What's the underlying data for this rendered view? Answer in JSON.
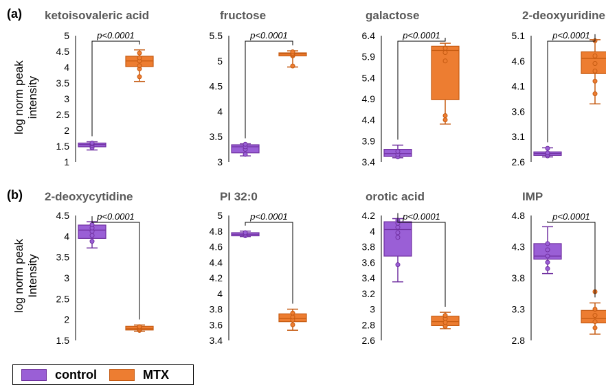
{
  "panel_labels": [
    "(a)",
    "(b)"
  ],
  "y_axis_labels": {
    "a": [
      "log norm peak",
      "intensity"
    ],
    "b": [
      "log norm peak",
      "Intensity"
    ]
  },
  "colors": {
    "control": "#9a5fd6",
    "control_edge": "#7030a0",
    "mtx": "#ed7d31",
    "mtx_edge": "#c55a11"
  },
  "legend": [
    {
      "name": "control",
      "color": "#9a5fd6"
    },
    {
      "name": "MTX",
      "color": "#ed7d31"
    }
  ],
  "chart_data": [
    {
      "type": "box",
      "title": "ketoisovaleric acid",
      "ylim": [
        1,
        5
      ],
      "yticks": [
        "5",
        "4.5",
        "4",
        "3.5",
        "3",
        "2.5",
        "2",
        "1.5",
        "1"
      ],
      "p_value": "p<0.0001",
      "series": [
        {
          "name": "control",
          "min": 1.38,
          "q1": 1.48,
          "median": 1.55,
          "q3": 1.6,
          "max": 1.64,
          "points": [
            1.45,
            1.52,
            1.57,
            1.6
          ]
        },
        {
          "name": "MTX",
          "min": 3.55,
          "q1": 4.02,
          "median": 4.2,
          "q3": 4.35,
          "max": 4.55,
          "points": [
            3.7,
            3.95,
            4.05,
            4.2,
            4.3,
            4.45
          ]
        }
      ]
    },
    {
      "type": "box",
      "title": "fructose",
      "ylim": [
        3,
        5.5
      ],
      "yticks": [
        "5.5",
        "5",
        "4.5",
        "4",
        "3.5",
        "3"
      ],
      "p_value": "p<0.0001",
      "series": [
        {
          "name": "control",
          "min": 3.12,
          "q1": 3.18,
          "median": 3.3,
          "q3": 3.34,
          "max": 3.36,
          "points": [
            3.15,
            3.25,
            3.3,
            3.35
          ]
        },
        {
          "name": "MTX",
          "min": 4.88,
          "q1": 5.1,
          "median": 5.14,
          "q3": 5.16,
          "max": 5.2,
          "points": [
            4.9,
            5.1,
            5.12,
            5.15,
            5.18
          ]
        }
      ]
    },
    {
      "type": "box",
      "title": "galactose",
      "ylim": [
        3.4,
        6.4
      ],
      "yticks": [
        "6.4",
        "5.9",
        "5.4",
        "4.9",
        "4.4",
        "3.9",
        "3.4"
      ],
      "p_value": "p<0.0001",
      "series": [
        {
          "name": "control",
          "min": 3.5,
          "q1": 3.53,
          "median": 3.6,
          "q3": 3.7,
          "max": 3.8,
          "points": [
            3.52,
            3.58,
            3.65
          ]
        },
        {
          "name": "MTX",
          "min": 4.3,
          "q1": 4.88,
          "median": 6.05,
          "q3": 6.15,
          "max": 6.22,
          "points": [
            4.4,
            4.5,
            5.8,
            6.0,
            6.1
          ]
        }
      ]
    },
    {
      "type": "box",
      "title": "2-deoxyuridine",
      "ylim": [
        2.6,
        5.1
      ],
      "yticks": [
        "5.1",
        "4.6",
        "4.1",
        "3.6",
        "3.1",
        "2.6"
      ],
      "p_value": "p<0.0001",
      "series": [
        {
          "name": "control",
          "min": 2.7,
          "q1": 2.73,
          "median": 2.77,
          "q3": 2.8,
          "max": 2.88,
          "points": [
            2.72,
            2.75,
            2.78,
            2.87
          ]
        },
        {
          "name": "MTX",
          "min": 3.75,
          "q1": 4.35,
          "median": 4.65,
          "q3": 4.78,
          "max": 5.02,
          "points": [
            3.95,
            4.2,
            4.4,
            4.55,
            4.7,
            5.0
          ]
        }
      ]
    },
    {
      "type": "box",
      "title": "2-deoxycytidine",
      "ylim": [
        1.5,
        4.5
      ],
      "yticks": [
        "4.5",
        "4",
        "3.5",
        "3",
        "2.5",
        "2",
        "1.5"
      ],
      "p_value": "p<0.0001",
      "series": [
        {
          "name": "control",
          "min": 3.72,
          "q1": 3.95,
          "median": 4.15,
          "q3": 4.27,
          "max": 4.35,
          "points": [
            3.88,
            4.02,
            4.12,
            4.2,
            4.28
          ]
        },
        {
          "name": "MTX",
          "min": 1.72,
          "q1": 1.75,
          "median": 1.78,
          "q3": 1.84,
          "max": 1.87,
          "points": [
            1.74,
            1.77,
            1.8,
            1.83
          ]
        }
      ]
    },
    {
      "type": "box",
      "title": "PI 32:0",
      "ylim": [
        3.4,
        5
      ],
      "yticks": [
        "5",
        "4.8",
        "4.6",
        "4.4",
        "4.2",
        "4",
        "3.8",
        "3.6",
        "3.4"
      ],
      "p_value": "p<0.0001",
      "series": [
        {
          "name": "control",
          "min": 4.73,
          "q1": 4.74,
          "median": 4.76,
          "q3": 4.78,
          "max": 4.8,
          "points": [
            4.74,
            4.76,
            4.78
          ]
        },
        {
          "name": "MTX",
          "min": 3.53,
          "q1": 3.64,
          "median": 3.68,
          "q3": 3.74,
          "max": 3.8,
          "points": [
            3.6,
            3.66,
            3.7,
            3.75
          ]
        }
      ]
    },
    {
      "type": "box",
      "title": "orotic acid",
      "ylim": [
        2.6,
        4.2
      ],
      "yticks": [
        "4.2",
        "4",
        "3.8",
        "3.6",
        "3.4",
        "3.2",
        "3",
        "2.8",
        "2.6"
      ],
      "p_value": "p<0.0001",
      "series": [
        {
          "name": "control",
          "min": 3.35,
          "q1": 3.68,
          "median": 4.02,
          "q3": 4.12,
          "max": 4.16,
          "points": [
            3.57,
            3.92,
            3.98,
            4.05,
            4.1,
            4.14
          ]
        },
        {
          "name": "MTX",
          "min": 2.75,
          "q1": 2.79,
          "median": 2.84,
          "q3": 2.91,
          "max": 2.96,
          "points": [
            2.78,
            2.83,
            2.88,
            2.92
          ]
        }
      ]
    },
    {
      "type": "box",
      "title": "IMP",
      "ylim": [
        2.8,
        4.8
      ],
      "yticks": [
        "4.8",
        "4.3",
        "3.8",
        "3.3",
        "2.8"
      ],
      "p_value": "p<0.0001",
      "series": [
        {
          "name": "control",
          "min": 3.87,
          "q1": 4.1,
          "median": 4.15,
          "q3": 4.35,
          "max": 4.62,
          "points": [
            3.95,
            4.05,
            4.15,
            4.25,
            4.35
          ]
        },
        {
          "name": "MTX",
          "min": 2.9,
          "q1": 3.08,
          "median": 3.15,
          "q3": 3.28,
          "max": 3.4,
          "points": [
            3.0,
            3.1,
            3.2,
            3.3,
            3.58
          ]
        }
      ]
    }
  ]
}
